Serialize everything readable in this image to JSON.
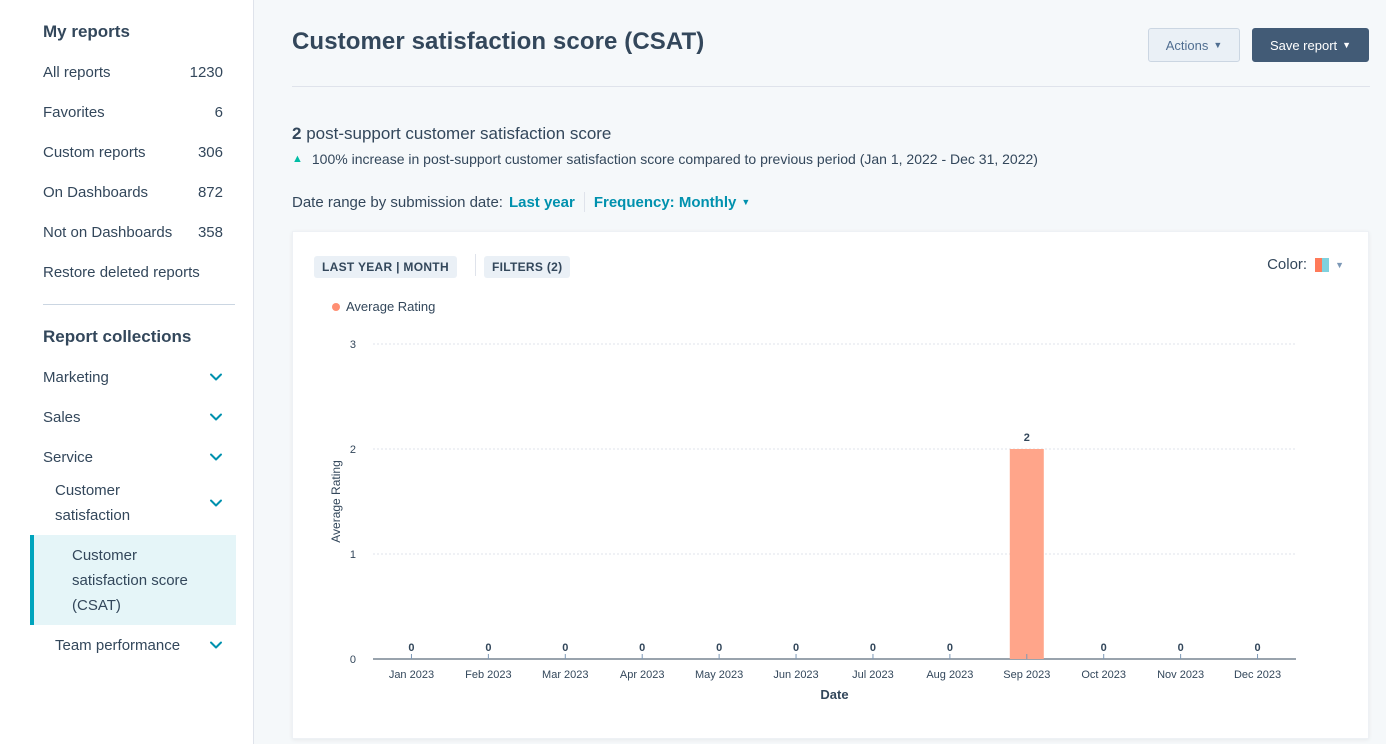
{
  "sidebar": {
    "my_reports_heading": "My reports",
    "items": [
      {
        "label": "All reports",
        "count": "1230"
      },
      {
        "label": "Favorites",
        "count": "6"
      },
      {
        "label": "Custom reports",
        "count": "306"
      },
      {
        "label": "On Dashboards",
        "count": "872"
      },
      {
        "label": "Not on Dashboards",
        "count": "358"
      },
      {
        "label": "Restore deleted reports",
        "count": ""
      }
    ],
    "collections_heading": "Report collections",
    "collections": [
      {
        "label": "Marketing"
      },
      {
        "label": "Sales"
      },
      {
        "label": "Service"
      }
    ],
    "sub_collection": "Customer satisfaction",
    "active_report": "Customer satisfaction score (CSAT)",
    "team_performance": "Team performance"
  },
  "header": {
    "title": "Customer satisfaction score (CSAT)",
    "actions_label": "Actions",
    "save_label": "Save report"
  },
  "summary": {
    "value": "2",
    "label": "post-support customer satisfaction score",
    "increase_text": "100% increase in post-support customer satisfaction score compared to previous period (Jan 1, 2022 - Dec 31, 2022)"
  },
  "date_range": {
    "prefix": "Date range by submission date:",
    "value": "Last year",
    "frequency": "Frequency: Monthly"
  },
  "card": {
    "range_pill": "LAST YEAR | MONTH",
    "filters_pill": "FILTERS (2)",
    "color_label": "Color:"
  },
  "colors": {
    "accent": "#0091ae",
    "bar": "#ffa58a",
    "legend_dot": "#ff8f73",
    "primary_button": "#425b76"
  },
  "chart_data": {
    "type": "bar",
    "categories": [
      "Jan 2023",
      "Feb 2023",
      "Mar 2023",
      "Apr 2023",
      "May 2023",
      "Jun 2023",
      "Jul 2023",
      "Aug 2023",
      "Sep 2023",
      "Oct 2023",
      "Nov 2023",
      "Dec 2023"
    ],
    "series": [
      {
        "name": "Average Rating",
        "values": [
          0,
          0,
          0,
          0,
          0,
          0,
          0,
          0,
          2,
          0,
          0,
          0
        ]
      }
    ],
    "xlabel": "Date",
    "ylabel": "Average Rating",
    "ylim": [
      0,
      3
    ],
    "yticks": [
      0,
      1,
      2,
      3
    ],
    "grid": true,
    "legend_position": "top-left"
  }
}
